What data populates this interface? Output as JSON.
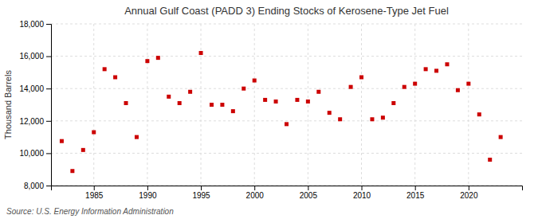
{
  "chart_data": {
    "type": "scatter",
    "title": "Annual Gulf Coast (PADD 3) Ending Stocks of Kerosene-Type Jet Fuel",
    "ylabel": "Thousand Barrels",
    "source": "Source: U.S. Energy Information Administration",
    "x": [
      1982,
      1983,
      1984,
      1985,
      1986,
      1987,
      1988,
      1989,
      1990,
      1991,
      1992,
      1993,
      1994,
      1995,
      1996,
      1997,
      1998,
      1999,
      2000,
      2001,
      2002,
      2003,
      2004,
      2005,
      2006,
      2007,
      2008,
      2009,
      2010,
      2011,
      2012,
      2013,
      2014,
      2015,
      2016,
      2017,
      2018,
      2019,
      2020,
      2021,
      2022,
      2023
    ],
    "values": [
      10750,
      8900,
      10200,
      11300,
      15200,
      14700,
      13100,
      11000,
      15700,
      15900,
      13500,
      13100,
      13800,
      16200,
      13000,
      13000,
      12600,
      14000,
      14500,
      13300,
      13200,
      11800,
      13300,
      13200,
      13800,
      12500,
      12100,
      14100,
      14700,
      12100,
      12200,
      13100,
      14100,
      14300,
      15200,
      15100,
      15500,
      13900,
      14300,
      12400,
      9600,
      11000
    ],
    "color": "#cc0000",
    "marker": "square",
    "xlim": [
      1981,
      2025
    ],
    "xticks": [
      1985,
      1990,
      1995,
      2000,
      2005,
      2010,
      2015,
      2020
    ],
    "ylim": [
      8000,
      18000
    ],
    "yticks": [
      {
        "value": 8000,
        "label": "8,000"
      },
      {
        "value": 10000,
        "label": "10,000"
      },
      {
        "value": 12000,
        "label": "12,000"
      },
      {
        "value": 14000,
        "label": "14,000"
      },
      {
        "value": 16000,
        "label": "16,000"
      },
      {
        "value": 18000,
        "label": "18,000"
      }
    ],
    "grid": true
  }
}
